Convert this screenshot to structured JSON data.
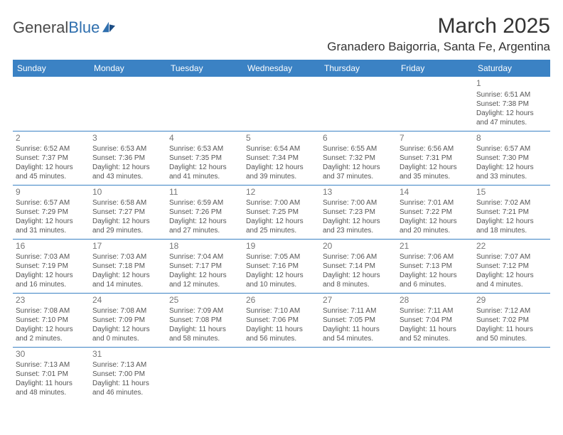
{
  "logo": {
    "text1": "General",
    "text2": "Blue"
  },
  "title": "March 2025",
  "location": "Granadero Baigorria, Santa Fe, Argentina",
  "header_bg": "#3b82c4",
  "header_fg": "#ffffff",
  "divider_color": "#3b82c4",
  "text_color": "#555555",
  "daynum_color": "#777777",
  "day_headers": [
    "Sunday",
    "Monday",
    "Tuesday",
    "Wednesday",
    "Thursday",
    "Friday",
    "Saturday"
  ],
  "weeks": [
    [
      null,
      null,
      null,
      null,
      null,
      null,
      {
        "n": "1",
        "sr": "6:51 AM",
        "ss": "7:38 PM",
        "dl": "12 hours and 47 minutes."
      }
    ],
    [
      {
        "n": "2",
        "sr": "6:52 AM",
        "ss": "7:37 PM",
        "dl": "12 hours and 45 minutes."
      },
      {
        "n": "3",
        "sr": "6:53 AM",
        "ss": "7:36 PM",
        "dl": "12 hours and 43 minutes."
      },
      {
        "n": "4",
        "sr": "6:53 AM",
        "ss": "7:35 PM",
        "dl": "12 hours and 41 minutes."
      },
      {
        "n": "5",
        "sr": "6:54 AM",
        "ss": "7:34 PM",
        "dl": "12 hours and 39 minutes."
      },
      {
        "n": "6",
        "sr": "6:55 AM",
        "ss": "7:32 PM",
        "dl": "12 hours and 37 minutes."
      },
      {
        "n": "7",
        "sr": "6:56 AM",
        "ss": "7:31 PM",
        "dl": "12 hours and 35 minutes."
      },
      {
        "n": "8",
        "sr": "6:57 AM",
        "ss": "7:30 PM",
        "dl": "12 hours and 33 minutes."
      }
    ],
    [
      {
        "n": "9",
        "sr": "6:57 AM",
        "ss": "7:29 PM",
        "dl": "12 hours and 31 minutes."
      },
      {
        "n": "10",
        "sr": "6:58 AM",
        "ss": "7:27 PM",
        "dl": "12 hours and 29 minutes."
      },
      {
        "n": "11",
        "sr": "6:59 AM",
        "ss": "7:26 PM",
        "dl": "12 hours and 27 minutes."
      },
      {
        "n": "12",
        "sr": "7:00 AM",
        "ss": "7:25 PM",
        "dl": "12 hours and 25 minutes."
      },
      {
        "n": "13",
        "sr": "7:00 AM",
        "ss": "7:23 PM",
        "dl": "12 hours and 23 minutes."
      },
      {
        "n": "14",
        "sr": "7:01 AM",
        "ss": "7:22 PM",
        "dl": "12 hours and 20 minutes."
      },
      {
        "n": "15",
        "sr": "7:02 AM",
        "ss": "7:21 PM",
        "dl": "12 hours and 18 minutes."
      }
    ],
    [
      {
        "n": "16",
        "sr": "7:03 AM",
        "ss": "7:19 PM",
        "dl": "12 hours and 16 minutes."
      },
      {
        "n": "17",
        "sr": "7:03 AM",
        "ss": "7:18 PM",
        "dl": "12 hours and 14 minutes."
      },
      {
        "n": "18",
        "sr": "7:04 AM",
        "ss": "7:17 PM",
        "dl": "12 hours and 12 minutes."
      },
      {
        "n": "19",
        "sr": "7:05 AM",
        "ss": "7:16 PM",
        "dl": "12 hours and 10 minutes."
      },
      {
        "n": "20",
        "sr": "7:06 AM",
        "ss": "7:14 PM",
        "dl": "12 hours and 8 minutes."
      },
      {
        "n": "21",
        "sr": "7:06 AM",
        "ss": "7:13 PM",
        "dl": "12 hours and 6 minutes."
      },
      {
        "n": "22",
        "sr": "7:07 AM",
        "ss": "7:12 PM",
        "dl": "12 hours and 4 minutes."
      }
    ],
    [
      {
        "n": "23",
        "sr": "7:08 AM",
        "ss": "7:10 PM",
        "dl": "12 hours and 2 minutes."
      },
      {
        "n": "24",
        "sr": "7:08 AM",
        "ss": "7:09 PM",
        "dl": "12 hours and 0 minutes."
      },
      {
        "n": "25",
        "sr": "7:09 AM",
        "ss": "7:08 PM",
        "dl": "11 hours and 58 minutes."
      },
      {
        "n": "26",
        "sr": "7:10 AM",
        "ss": "7:06 PM",
        "dl": "11 hours and 56 minutes."
      },
      {
        "n": "27",
        "sr": "7:11 AM",
        "ss": "7:05 PM",
        "dl": "11 hours and 54 minutes."
      },
      {
        "n": "28",
        "sr": "7:11 AM",
        "ss": "7:04 PM",
        "dl": "11 hours and 52 minutes."
      },
      {
        "n": "29",
        "sr": "7:12 AM",
        "ss": "7:02 PM",
        "dl": "11 hours and 50 minutes."
      }
    ],
    [
      {
        "n": "30",
        "sr": "7:13 AM",
        "ss": "7:01 PM",
        "dl": "11 hours and 48 minutes."
      },
      {
        "n": "31",
        "sr": "7:13 AM",
        "ss": "7:00 PM",
        "dl": "11 hours and 46 minutes."
      },
      null,
      null,
      null,
      null,
      null
    ]
  ],
  "labels": {
    "sunrise": "Sunrise:",
    "sunset": "Sunset:",
    "daylight": "Daylight:"
  }
}
